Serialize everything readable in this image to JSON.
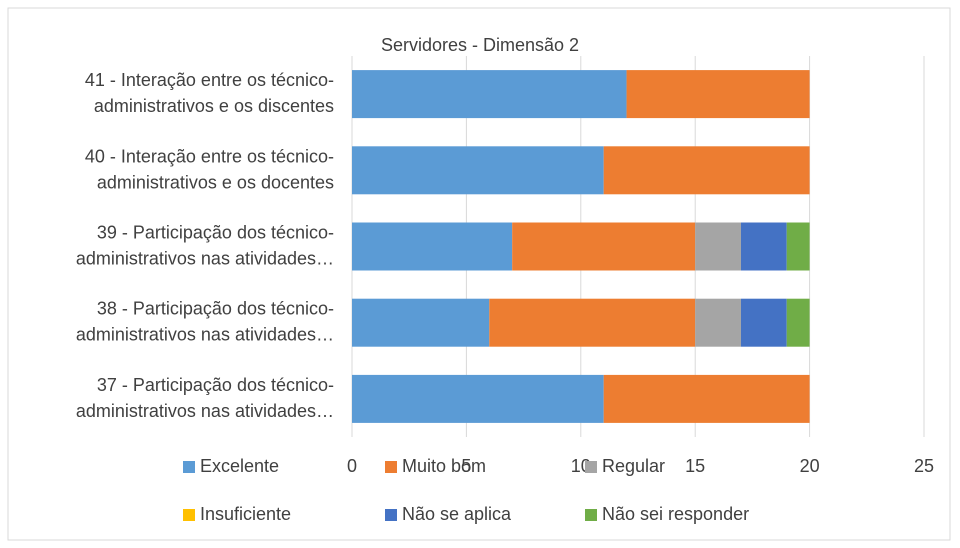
{
  "chart_data": {
    "type": "stacked_barh",
    "title": "Servidores - Dimensão 2",
    "categories": [
      "41 - Interação entre os técnico-\nadministrativos e os discentes",
      "40 - Interação entre os técnico-\nadministrativos e os docentes",
      "39 - Participação dos técnico-\nadministrativos nas atividades…",
      "38 - Participação dos técnico-\nadministrativos nas atividades…",
      "37 - Participação dos técnico-\nadministrativos nas atividades…"
    ],
    "series": [
      {
        "name": "Excelente",
        "color": "#5b9bd5",
        "values": [
          12,
          11,
          7,
          6,
          11
        ]
      },
      {
        "name": "Muito bom",
        "color": "#ed7d31",
        "values": [
          8,
          9,
          8,
          9,
          9
        ]
      },
      {
        "name": "Regular",
        "color": "#a5a5a5",
        "values": [
          0,
          0,
          2,
          2,
          0
        ]
      },
      {
        "name": "Insuficiente",
        "color": "#ffc000",
        "values": [
          0,
          0,
          0,
          0,
          0
        ]
      },
      {
        "name": "Não se aplica",
        "color": "#4472c4",
        "values": [
          0,
          0,
          2,
          2,
          0
        ]
      },
      {
        "name": "Não sei responder",
        "color": "#70ad47",
        "values": [
          0,
          0,
          1,
          1,
          0
        ]
      }
    ],
    "xlim": [
      0,
      25
    ],
    "xticks": [
      0,
      5,
      10,
      15,
      20,
      25
    ],
    "grid": true,
    "legend": "bottom"
  }
}
